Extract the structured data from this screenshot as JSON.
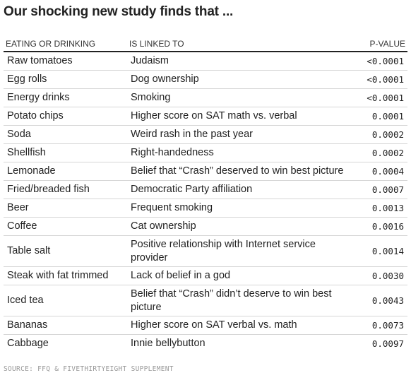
{
  "title": "Our shocking new study finds that ...",
  "source": "SOURCE: FFQ & FIVETHIRTYEIGHT SUPPLEMENT",
  "chart_data": {
    "type": "table",
    "columns": [
      "EATING OR DRINKING",
      "IS LINKED TO",
      "P-VALUE"
    ],
    "rows": [
      {
        "food": "Raw tomatoes",
        "linked": "Judaism",
        "pvalue": "<0.0001"
      },
      {
        "food": "Egg rolls",
        "linked": "Dog ownership",
        "pvalue": "<0.0001"
      },
      {
        "food": "Energy drinks",
        "linked": "Smoking",
        "pvalue": "<0.0001"
      },
      {
        "food": "Potato chips",
        "linked": "Higher score on SAT math vs. verbal",
        "pvalue": "0.0001"
      },
      {
        "food": "Soda",
        "linked": "Weird rash in the past year",
        "pvalue": "0.0002"
      },
      {
        "food": "Shellfish",
        "linked": "Right-handedness",
        "pvalue": "0.0002"
      },
      {
        "food": "Lemonade",
        "linked": "Belief that “Crash” deserved to win best picture",
        "pvalue": "0.0004"
      },
      {
        "food": "Fried/breaded fish",
        "linked": "Democratic Party affiliation",
        "pvalue": "0.0007"
      },
      {
        "food": "Beer",
        "linked": "Frequent smoking",
        "pvalue": "0.0013"
      },
      {
        "food": "Coffee",
        "linked": "Cat ownership",
        "pvalue": "0.0016"
      },
      {
        "food": "Table salt",
        "linked": "Positive relationship with Internet service provider",
        "pvalue": "0.0014"
      },
      {
        "food": "Steak with fat trimmed",
        "linked": "Lack of belief in a god",
        "pvalue": "0.0030"
      },
      {
        "food": "Iced tea",
        "linked": "Belief that “Crash” didn’t deserve to win best picture",
        "pvalue": "0.0043"
      },
      {
        "food": "Bananas",
        "linked": "Higher score on SAT verbal vs. math",
        "pvalue": "0.0073"
      },
      {
        "food": "Cabbage",
        "linked": "Innie bellybutton",
        "pvalue": "0.0097"
      }
    ]
  }
}
